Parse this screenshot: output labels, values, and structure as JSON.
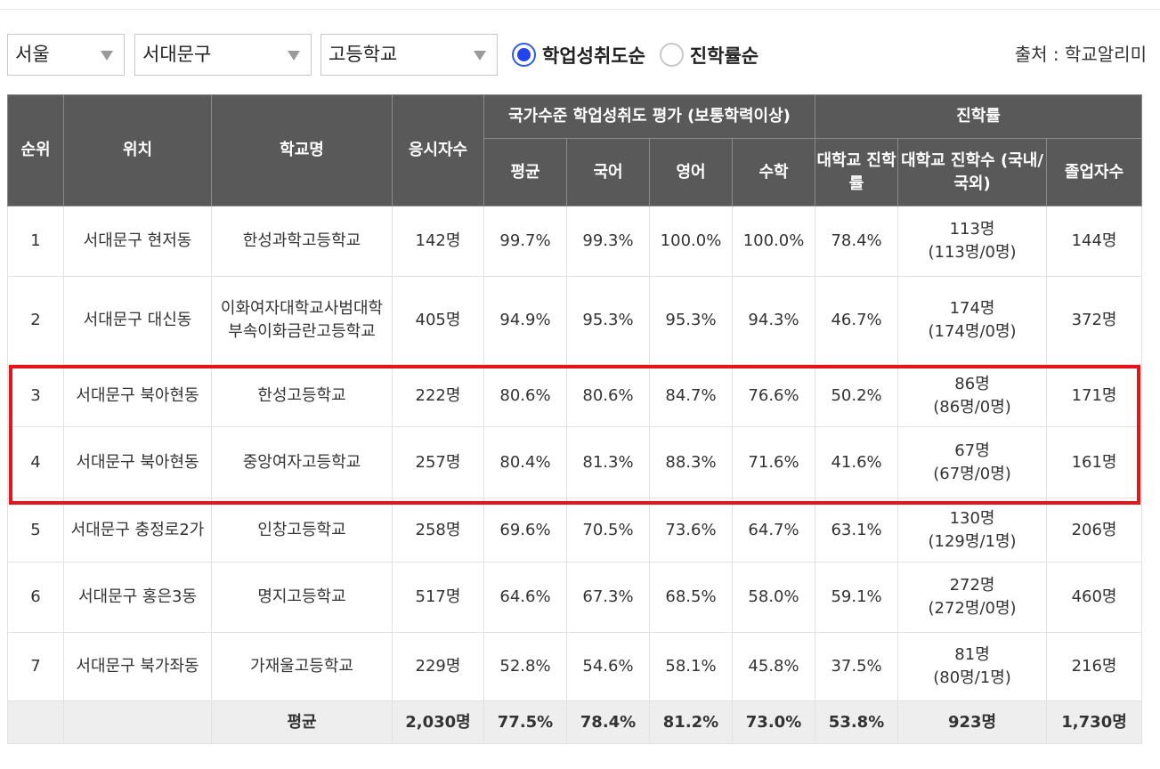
{
  "filters": {
    "region": "서울",
    "district": "서대문구",
    "school_type": "고등학교"
  },
  "sort": {
    "options": [
      {
        "label": "학업성취도순",
        "checked": true
      },
      {
        "label": "진학률순",
        "checked": false
      }
    ]
  },
  "source": "출처 : 학교알리미",
  "headers": {
    "rank": "순위",
    "location": "위치",
    "school": "학교명",
    "examinees": "응시자수",
    "achievement_group": "국가수준 학업성취도 평가 (보통학력이상)",
    "avg": "평균",
    "korean": "국어",
    "english": "영어",
    "math": "수학",
    "admission_group": "진학률",
    "univ_rate": "대학교 진학률",
    "univ_count": "대학교 진학수 (국내/국외)",
    "graduates": "졸업자수"
  },
  "rows": [
    {
      "rank": "1",
      "location": "서대문구 현저동",
      "school": "한성과학고등학교",
      "examinees": "142명",
      "avg": "99.7%",
      "korean": "99.3%",
      "english": "100.0%",
      "math": "100.0%",
      "univ_rate": "78.4%",
      "univ_count": "113명",
      "univ_detail": "(113명/0명)",
      "graduates": "144명"
    },
    {
      "rank": "2",
      "location": "서대문구 대신동",
      "school": "이화여자대학교사범대학부속이화금란고등학교",
      "examinees": "405명",
      "avg": "94.9%",
      "korean": "95.3%",
      "english": "95.3%",
      "math": "94.3%",
      "univ_rate": "46.7%",
      "univ_count": "174명",
      "univ_detail": "(174명/0명)",
      "graduates": "372명"
    },
    {
      "rank": "3",
      "location": "서대문구 북아현동",
      "school": "한성고등학교",
      "examinees": "222명",
      "avg": "80.6%",
      "korean": "80.6%",
      "english": "84.7%",
      "math": "76.6%",
      "univ_rate": "50.2%",
      "univ_count": "86명",
      "univ_detail": "(86명/0명)",
      "graduates": "171명"
    },
    {
      "rank": "4",
      "location": "서대문구 북아현동",
      "school": "중앙여자고등학교",
      "examinees": "257명",
      "avg": "80.4%",
      "korean": "81.3%",
      "english": "88.3%",
      "math": "71.6%",
      "univ_rate": "41.6%",
      "univ_count": "67명",
      "univ_detail": "(67명/0명)",
      "graduates": "161명"
    },
    {
      "rank": "5",
      "location": "서대문구 충정로2가",
      "school": "인창고등학교",
      "examinees": "258명",
      "avg": "69.6%",
      "korean": "70.5%",
      "english": "73.6%",
      "math": "64.7%",
      "univ_rate": "63.1%",
      "univ_count": "130명",
      "univ_detail": "(129명/1명)",
      "graduates": "206명"
    },
    {
      "rank": "6",
      "location": "서대문구 홍은3동",
      "school": "명지고등학교",
      "examinees": "517명",
      "avg": "64.6%",
      "korean": "67.3%",
      "english": "68.5%",
      "math": "58.0%",
      "univ_rate": "59.1%",
      "univ_count": "272명",
      "univ_detail": "(272명/0명)",
      "graduates": "460명"
    },
    {
      "rank": "7",
      "location": "서대문구 북가좌동",
      "school": "가재울고등학교",
      "examinees": "229명",
      "avg": "52.8%",
      "korean": "54.6%",
      "english": "58.1%",
      "math": "45.8%",
      "univ_rate": "37.5%",
      "univ_count": "81명",
      "univ_detail": "(80명/1명)",
      "graduates": "216명"
    }
  ],
  "footer": {
    "label": "평균",
    "examinees": "2,030명",
    "avg": "77.5%",
    "korean": "78.4%",
    "english": "81.2%",
    "math": "73.0%",
    "univ_rate": "53.8%",
    "univ_count": "923명",
    "graduates": "1,730명"
  },
  "colors": {
    "header_bg": "#595959",
    "highlight": "#e8141c",
    "radio_accent": "#2443f0"
  }
}
